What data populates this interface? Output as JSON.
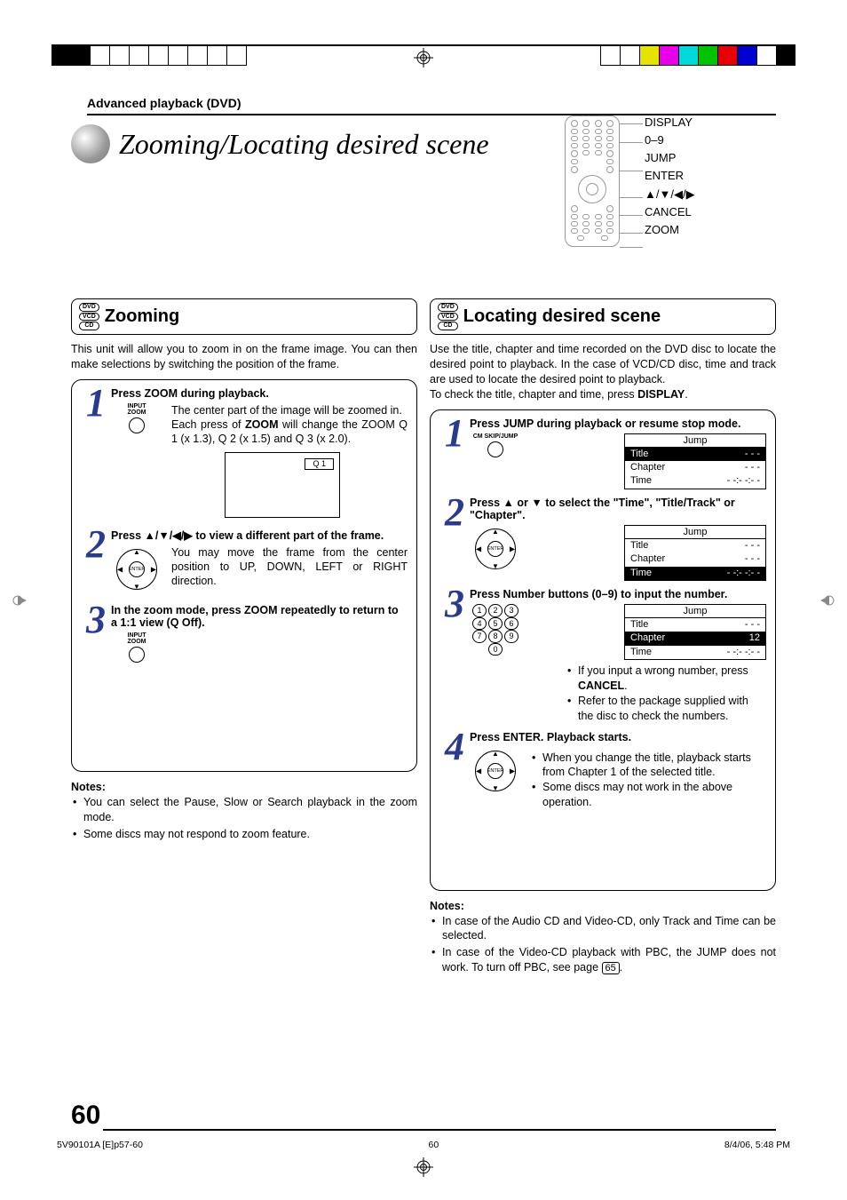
{
  "meta": {
    "breadcrumb": "Advanced playback (DVD)",
    "page_title": "Zooming/Locating desired scene",
    "page_number": "60",
    "footer_left": "5V90101A [E]p57-60",
    "footer_center": "60",
    "footer_right": "8/4/06, 5:48 PM"
  },
  "topbar": {
    "left_blocks": [
      "#000000",
      "#000000",
      "#ffffff",
      "#ffffff",
      "#ffffff",
      "#ffffff",
      "#ffffff",
      "#ffffff",
      "#ffffff",
      "#ffffff"
    ],
    "right_blocks": [
      "#ffffff",
      "#ffffff",
      "#e4e400",
      "#e800e8",
      "#00d9d9",
      "#00c400",
      "#e80000",
      "#0000d0",
      "#ffffff",
      "#000000"
    ]
  },
  "remote": {
    "labels": [
      "DISPLAY",
      "0–9",
      "JUMP",
      "ENTER",
      "▲/▼/◀/▶",
      "CANCEL",
      "ZOOM"
    ]
  },
  "zooming": {
    "badges": [
      "DVD",
      "VCD",
      "CD"
    ],
    "title": "Zooming",
    "intro": "This unit will allow you to zoom in on the frame image. You can then make selections by switching the position of the frame.",
    "steps": [
      {
        "num": "1",
        "head": "Press ZOOM during playback.",
        "icon_label": "INPUT\nZOOM",
        "desc_before": "The center part of the image will be zoomed in.\nEach press of ",
        "desc_bold": "ZOOM",
        "desc_after": " will change the ZOOM Q 1 (x 1.3), Q 2 (x 1.5) and Q 3 (x 2.0).",
        "tv_label": "Q 1"
      },
      {
        "num": "2",
        "head": "Press ▲/▼/◀/▶ to view a different part of the frame.",
        "desc": "You may move the frame from the center position to UP, DOWN, LEFT or RIGHT direction."
      },
      {
        "num": "3",
        "head": "In the zoom mode, press ZOOM repeatedly to return to a 1:1 view (Q Off).",
        "icon_label": "INPUT\nZOOM"
      }
    ],
    "notes_head": "Notes:",
    "notes": [
      "You can select the Pause, Slow or Search playback in the zoom mode.",
      "Some discs may not respond to zoom feature."
    ]
  },
  "locating": {
    "badges": [
      "DVD",
      "VCD",
      "CD"
    ],
    "title": "Locating desired scene",
    "intro_before": "Use the title, chapter and time recorded on the DVD disc to locate the desired point to playback. In the case of VCD/CD disc, time and track are used to locate the desired point to playback.\nTo check the title, chapter and time, press ",
    "intro_bold": "DISPLAY",
    "intro_after": ".",
    "osd_variants": {
      "v1": {
        "title": "Jump",
        "rows": [
          [
            "Title",
            "- - -"
          ],
          [
            "Chapter",
            "- - -"
          ],
          [
            "Time",
            "- -:- -:- -"
          ]
        ],
        "hilite": 0
      },
      "v2": {
        "title": "Jump",
        "rows": [
          [
            "Title",
            "- - -"
          ],
          [
            "Chapter",
            "- - -"
          ],
          [
            "Time",
            "- -:- -:- -"
          ]
        ],
        "hilite": 2
      },
      "v3": {
        "title": "Jump",
        "rows": [
          [
            "Title",
            "- - -"
          ],
          [
            "Chapter",
            "12"
          ],
          [
            "Time",
            "- -:- -:- -"
          ]
        ],
        "hilite": 1
      }
    },
    "steps": [
      {
        "num": "1",
        "head": "Press JUMP during playback or resume stop mode.",
        "icon_label": "CM SKIP/JUMP",
        "osd": "v1"
      },
      {
        "num": "2",
        "head": "Press ▲ or ▼ to select the \"Time\", \"Title/Track\" or \"Chapter\".",
        "osd": "v2"
      },
      {
        "num": "3",
        "head": "Press Number buttons (0–9) to input the number.",
        "numpad": [
          [
            "1",
            "2",
            "3"
          ],
          [
            "4",
            "5",
            "6"
          ],
          [
            "7",
            "8",
            "9"
          ],
          [
            "0"
          ]
        ],
        "osd": "v3",
        "bullets_before": "If you input a wrong number, press ",
        "bullets_bold": "CANCEL",
        "bullets_after": ".",
        "bullet2": "Refer to the package supplied with the disc to check the numbers."
      },
      {
        "num": "4",
        "head": "Press ENTER. Playback starts.",
        "bullets": [
          "When you change the title, playback starts from Chapter 1 of the selected title.",
          "Some discs may not work in the above operation."
        ]
      }
    ],
    "notes_head": "Notes:",
    "notes": [
      "In case of the Audio CD and Video-CD, only Track and Time can be selected.",
      "In case of the Video-CD playback with PBC, the JUMP does not work. To turn off PBC, see page "
    ],
    "page_ref": "65"
  }
}
